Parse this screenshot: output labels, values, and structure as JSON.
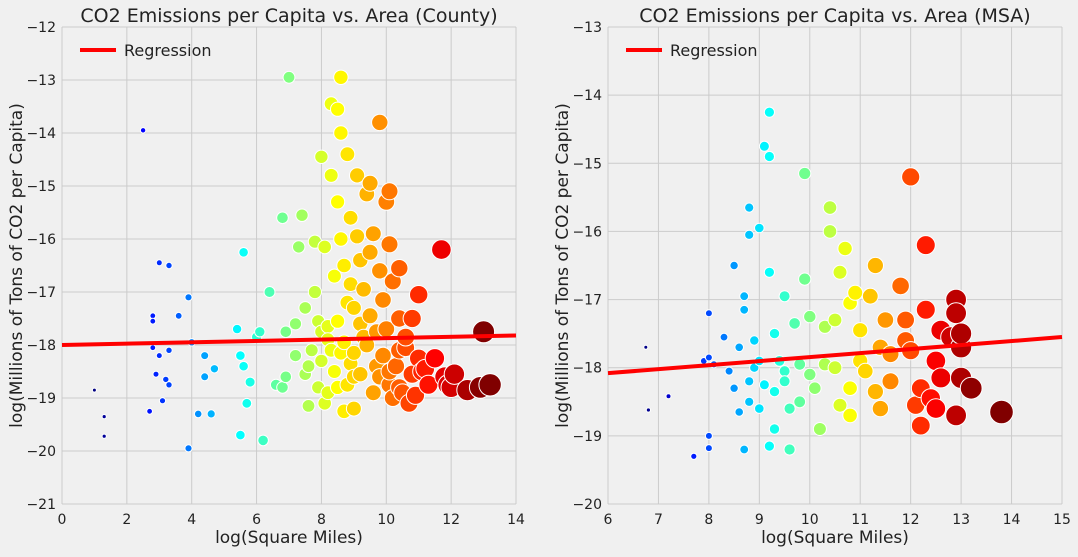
{
  "chart_data": [
    {
      "type": "scatter",
      "title": "CO2 Emissions per Capita vs. Area (County)",
      "xlabel": "log(Square Miles)",
      "ylabel": "log(Millions of Tons of CO2 per Capita)",
      "xlim": [
        0,
        14
      ],
      "ylim": [
        -21,
        -12
      ],
      "xticks": [
        "0",
        "2",
        "4",
        "6",
        "8",
        "10",
        "12",
        "14"
      ],
      "yticks": [
        "−21",
        "−20",
        "−19",
        "−18",
        "−17",
        "−16",
        "−15",
        "−14",
        "−13",
        "−12"
      ],
      "grid": true,
      "legend": {
        "position": "top-left",
        "entries": [
          "Regression"
        ]
      },
      "regression": {
        "x": [
          0,
          14
        ],
        "y": [
          -18.0,
          -17.82
        ],
        "color": "#ff0000"
      },
      "color_scale": "jet",
      "points_note": "color and marker size increase with log(Square Miles)",
      "points": [
        [
          1.0,
          -18.85
        ],
        [
          1.3,
          -19.35
        ],
        [
          1.3,
          -19.72
        ],
        [
          2.5,
          -13.95
        ],
        [
          2.7,
          -19.25
        ],
        [
          2.8,
          -17.45
        ],
        [
          2.8,
          -17.55
        ],
        [
          2.8,
          -18.05
        ],
        [
          2.9,
          -18.55
        ],
        [
          3.0,
          -16.45
        ],
        [
          3.0,
          -18.2
        ],
        [
          3.1,
          -19.05
        ],
        [
          3.2,
          -18.65
        ],
        [
          3.3,
          -18.1
        ],
        [
          3.3,
          -16.5
        ],
        [
          3.3,
          -18.75
        ],
        [
          3.6,
          -17.45
        ],
        [
          3.9,
          -17.1
        ],
        [
          3.9,
          -19.95
        ],
        [
          4.0,
          -17.95
        ],
        [
          4.2,
          -19.3
        ],
        [
          4.4,
          -18.2
        ],
        [
          4.4,
          -18.6
        ],
        [
          4.6,
          -19.3
        ],
        [
          4.7,
          -18.45
        ],
        [
          5.4,
          -17.7
        ],
        [
          5.5,
          -18.2
        ],
        [
          5.5,
          -19.7
        ],
        [
          5.6,
          -16.25
        ],
        [
          5.6,
          -18.4
        ],
        [
          5.7,
          -19.1
        ],
        [
          5.8,
          -18.7
        ],
        [
          6.0,
          -17.85
        ],
        [
          6.1,
          -17.75
        ],
        [
          6.2,
          -19.8
        ],
        [
          6.4,
          -17.0
        ],
        [
          6.6,
          -18.75
        ],
        [
          6.8,
          -18.8
        ],
        [
          6.8,
          -15.6
        ],
        [
          6.9,
          -17.75
        ],
        [
          7.0,
          -12.95
        ],
        [
          7.2,
          -17.6
        ],
        [
          7.3,
          -16.15
        ],
        [
          7.4,
          -15.55
        ],
        [
          7.5,
          -17.3
        ],
        [
          7.5,
          -18.55
        ],
        [
          7.6,
          -19.15
        ],
        [
          7.7,
          -18.1
        ],
        [
          7.8,
          -17.0
        ],
        [
          7.8,
          -16.05
        ],
        [
          7.9,
          -18.8
        ],
        [
          7.9,
          -17.55
        ],
        [
          8.0,
          -18.3
        ],
        [
          8.0,
          -14.45
        ],
        [
          8.0,
          -17.75
        ],
        [
          8.1,
          -16.15
        ],
        [
          8.1,
          -19.1
        ],
        [
          8.2,
          -17.65
        ],
        [
          8.2,
          -18.9
        ],
        [
          8.3,
          -13.45
        ],
        [
          8.3,
          -14.8
        ],
        [
          8.4,
          -18.5
        ],
        [
          8.4,
          -16.7
        ],
        [
          8.5,
          -15.3
        ],
        [
          8.5,
          -17.55
        ],
        [
          8.5,
          -13.55
        ],
        [
          8.6,
          -16.0
        ],
        [
          8.6,
          -12.95
        ],
        [
          8.6,
          -14.0
        ],
        [
          8.6,
          -18.15
        ],
        [
          8.7,
          -16.5
        ],
        [
          8.7,
          -17.95
        ],
        [
          8.7,
          -19.25
        ],
        [
          8.8,
          -14.4
        ],
        [
          8.8,
          -18.75
        ],
        [
          8.9,
          -15.6
        ],
        [
          8.9,
          -16.85
        ],
        [
          9.0,
          -18.15
        ],
        [
          9.0,
          -17.3
        ],
        [
          9.0,
          -19.2
        ],
        [
          9.1,
          -14.8
        ],
        [
          9.1,
          -15.95
        ],
        [
          9.2,
          -16.4
        ],
        [
          9.2,
          -18.55
        ],
        [
          9.3,
          -16.95
        ],
        [
          9.4,
          -15.15
        ],
        [
          9.4,
          -18.0
        ],
        [
          9.5,
          -17.45
        ],
        [
          9.5,
          -14.95
        ],
        [
          9.5,
          -16.25
        ],
        [
          9.6,
          -18.9
        ],
        [
          9.6,
          -15.9
        ],
        [
          9.7,
          -17.75
        ],
        [
          9.8,
          -13.8
        ],
        [
          9.8,
          -16.6
        ],
        [
          9.9,
          -18.2
        ],
        [
          9.9,
          -17.15
        ],
        [
          10.0,
          -15.3
        ],
        [
          10.0,
          -17.7
        ],
        [
          10.1,
          -18.75
        ],
        [
          10.1,
          -16.1
        ],
        [
          10.1,
          -15.1
        ],
        [
          10.2,
          -16.8
        ],
        [
          10.2,
          -19.0
        ],
        [
          10.3,
          -18.4
        ],
        [
          10.4,
          -17.5
        ],
        [
          10.4,
          -16.55
        ],
        [
          10.5,
          -18.9
        ],
        [
          10.6,
          -18.05
        ],
        [
          10.7,
          -19.1
        ],
        [
          10.8,
          -17.5
        ],
        [
          10.8,
          -18.55
        ],
        [
          10.9,
          -18.95
        ],
        [
          11.0,
          -17.05
        ],
        [
          11.0,
          -18.25
        ],
        [
          11.1,
          -18.5
        ],
        [
          11.2,
          -18.45
        ],
        [
          11.3,
          -18.75
        ],
        [
          11.5,
          -18.25
        ],
        [
          11.7,
          -16.2
        ],
        [
          11.9,
          -18.75
        ],
        [
          12.0,
          -18.8
        ],
        [
          12.1,
          -18.55
        ],
        [
          12.5,
          -18.85
        ],
        [
          12.9,
          -18.8
        ],
        [
          13.0,
          -17.75
        ],
        [
          13.2,
          -18.75
        ],
        [
          8.2,
          -17.9
        ],
        [
          8.9,
          -18.35
        ],
        [
          9.3,
          -17.85
        ],
        [
          9.7,
          -18.4
        ],
        [
          8.5,
          -18.8
        ],
        [
          9.0,
          -18.6
        ],
        [
          9.8,
          -18.6
        ],
        [
          7.6,
          -18.4
        ],
        [
          8.3,
          -18.1
        ],
        [
          10.4,
          -18.1
        ],
        [
          9.2,
          -17.6
        ],
        [
          8.8,
          -17.2
        ],
        [
          10.6,
          -17.85
        ],
        [
          10.4,
          -18.8
        ],
        [
          11.8,
          -18.6
        ],
        [
          7.2,
          -18.2
        ],
        [
          6.9,
          -18.6
        ],
        [
          10.1,
          -18.5
        ]
      ]
    },
    {
      "type": "scatter",
      "title": "CO2 Emissions per Capita vs. Area (MSA)",
      "xlabel": "log(Square Miles)",
      "ylabel": "log(Millions of Tons of CO2 per Capita)",
      "xlim": [
        6,
        15
      ],
      "ylim": [
        -20,
        -13
      ],
      "xticks": [
        "6",
        "7",
        "8",
        "9",
        "10",
        "11",
        "12",
        "13",
        "14",
        "15"
      ],
      "yticks": [
        "−20",
        "−19",
        "−18",
        "−17",
        "−16",
        "−15",
        "−14",
        "−13"
      ],
      "grid": true,
      "legend": {
        "position": "top-left",
        "entries": [
          "Regression"
        ]
      },
      "regression": {
        "x": [
          6,
          15
        ],
        "y": [
          -18.08,
          -17.55
        ],
        "color": "#ff0000"
      },
      "color_scale": "jet",
      "points_note": "color and marker size increase with log(Square Miles)",
      "points": [
        [
          6.75,
          -17.7
        ],
        [
          6.8,
          -18.62
        ],
        [
          7.2,
          -18.42
        ],
        [
          7.7,
          -19.3
        ],
        [
          7.9,
          -17.9
        ],
        [
          8.0,
          -17.85
        ],
        [
          8.0,
          -19.0
        ],
        [
          8.0,
          -19.18
        ],
        [
          8.0,
          -17.2
        ],
        [
          8.1,
          -17.95
        ],
        [
          8.3,
          -17.55
        ],
        [
          8.4,
          -18.05
        ],
        [
          8.5,
          -16.5
        ],
        [
          8.5,
          -18.3
        ],
        [
          8.6,
          -18.65
        ],
        [
          8.6,
          -17.7
        ],
        [
          8.7,
          -17.15
        ],
        [
          8.7,
          -16.95
        ],
        [
          8.7,
          -19.2
        ],
        [
          8.8,
          -15.65
        ],
        [
          8.8,
          -16.05
        ],
        [
          8.8,
          -18.5
        ],
        [
          8.9,
          -18.0
        ],
        [
          9.0,
          -15.95
        ],
        [
          9.0,
          -17.9
        ],
        [
          9.1,
          -14.75
        ],
        [
          9.1,
          -18.25
        ],
        [
          9.2,
          -14.25
        ],
        [
          9.2,
          -14.9
        ],
        [
          9.2,
          -16.6
        ],
        [
          9.2,
          -19.15
        ],
        [
          9.3,
          -18.35
        ],
        [
          9.3,
          -18.9
        ],
        [
          9.4,
          -17.9
        ],
        [
          9.5,
          -16.95
        ],
        [
          9.5,
          -18.05
        ],
        [
          9.6,
          -19.2
        ],
        [
          9.6,
          -18.6
        ],
        [
          9.7,
          -17.35
        ],
        [
          9.8,
          -17.95
        ],
        [
          9.9,
          -15.15
        ],
        [
          9.9,
          -16.7
        ],
        [
          10.0,
          -17.25
        ],
        [
          10.1,
          -18.3
        ],
        [
          10.2,
          -18.9
        ],
        [
          10.3,
          -17.95
        ],
        [
          10.4,
          -15.65
        ],
        [
          10.4,
          -16.0
        ],
        [
          10.5,
          -17.3
        ],
        [
          10.6,
          -16.6
        ],
        [
          10.6,
          -18.55
        ],
        [
          10.7,
          -16.25
        ],
        [
          10.8,
          -17.05
        ],
        [
          10.8,
          -18.3
        ],
        [
          10.9,
          -16.9
        ],
        [
          11.0,
          -17.45
        ],
        [
          11.1,
          -18.05
        ],
        [
          11.2,
          -16.95
        ],
        [
          11.3,
          -16.5
        ],
        [
          11.3,
          -18.35
        ],
        [
          11.4,
          -17.7
        ],
        [
          11.4,
          -18.6
        ],
        [
          11.5,
          -17.3
        ],
        [
          11.6,
          -18.2
        ],
        [
          11.8,
          -16.8
        ],
        [
          11.9,
          -17.6
        ],
        [
          12.0,
          -15.2
        ],
        [
          12.0,
          -17.75
        ],
        [
          12.1,
          -18.55
        ],
        [
          12.2,
          -18.3
        ],
        [
          12.2,
          -18.85
        ],
        [
          12.3,
          -17.15
        ],
        [
          12.3,
          -16.2
        ],
        [
          12.4,
          -18.45
        ],
        [
          12.5,
          -18.6
        ],
        [
          12.6,
          -17.45
        ],
        [
          12.6,
          -18.15
        ],
        [
          12.8,
          -17.55
        ],
        [
          12.9,
          -17.0
        ],
        [
          12.9,
          -17.2
        ],
        [
          12.9,
          -18.7
        ],
        [
          13.0,
          -17.7
        ],
        [
          13.0,
          -18.15
        ],
        [
          13.0,
          -17.5
        ],
        [
          13.2,
          -18.3
        ],
        [
          13.8,
          -18.65
        ],
        [
          9.0,
          -18.6
        ],
        [
          9.5,
          -18.2
        ],
        [
          10.0,
          -18.1
        ],
        [
          10.5,
          -18.0
        ],
        [
          11.0,
          -17.9
        ],
        [
          9.8,
          -18.5
        ],
        [
          10.3,
          -17.4
        ],
        [
          8.9,
          -17.6
        ],
        [
          11.6,
          -17.8
        ],
        [
          10.8,
          -18.7
        ],
        [
          9.3,
          -17.5
        ],
        [
          12.5,
          -17.9
        ],
        [
          11.9,
          -17.3
        ],
        [
          8.8,
          -18.2
        ]
      ]
    }
  ]
}
